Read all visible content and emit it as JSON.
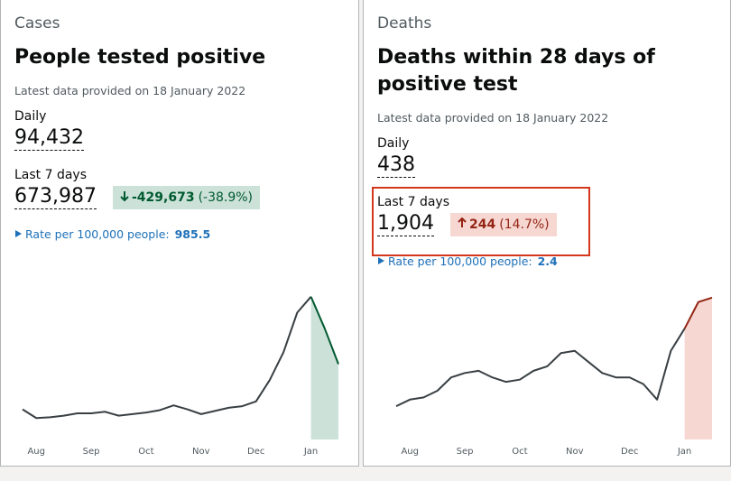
{
  "cards": [
    {
      "heading": "Cases",
      "title": "People tested positive",
      "latest": "Latest data provided on 18 January 2022",
      "daily_label": "Daily",
      "daily_value": "94,432",
      "week_label": "Last 7 days",
      "week_value": "673,987",
      "change_value": "-429,673",
      "change_percent": "(-38.9%)",
      "rate_label": "Rate per 100,000 people:",
      "rate_value": "985.5",
      "chart_data": {
        "type": "line",
        "categories": [
          null,
          "Aug",
          null,
          null,
          null,
          "Sep",
          null,
          null,
          null,
          "Oct",
          null,
          null,
          null,
          "Nov",
          null,
          null,
          null,
          "Dec",
          null,
          null,
          null,
          "Jan",
          null,
          null
        ],
        "values": [
          38000,
          27000,
          28000,
          30000,
          33000,
          33000,
          35000,
          30000,
          32000,
          34000,
          37000,
          43000,
          38000,
          32000,
          36000,
          40000,
          42000,
          48000,
          75000,
          110000,
          160000,
          180000,
          140000,
          95000
        ],
        "ylim": [
          0,
          190000
        ],
        "color": "#383f43",
        "highlight_last": 3,
        "highlight_color": "#005a30",
        "highlight_fill": "#cce2d8"
      }
    },
    {
      "heading": "Deaths",
      "title": "Deaths within 28 days of positive test",
      "latest": "Latest data provided on 18 January 2022",
      "daily_label": "Daily",
      "daily_value": "438",
      "week_label": "Last 7 days",
      "week_value": "1,904",
      "change_value": "244",
      "change_percent": "(14.7%)",
      "rate_label": "Rate per 100,000 people:",
      "rate_value": "2.4",
      "chart_data": {
        "type": "line",
        "categories": [
          null,
          "Aug",
          null,
          null,
          null,
          "Sep",
          null,
          null,
          null,
          "Oct",
          null,
          null,
          null,
          "Nov",
          null,
          null,
          null,
          "Dec",
          null,
          null,
          null,
          "Jan",
          null,
          null
        ],
        "values": [
          75,
          90,
          95,
          110,
          140,
          150,
          155,
          140,
          130,
          135,
          155,
          165,
          195,
          200,
          175,
          150,
          140,
          140,
          125,
          90,
          200,
          250,
          310,
          320
        ],
        "ylim": [
          0,
          340
        ],
        "color": "#383f43",
        "highlight_last": 3,
        "highlight_color": "#942514",
        "highlight_fill": "#f6d7d2"
      }
    }
  ]
}
